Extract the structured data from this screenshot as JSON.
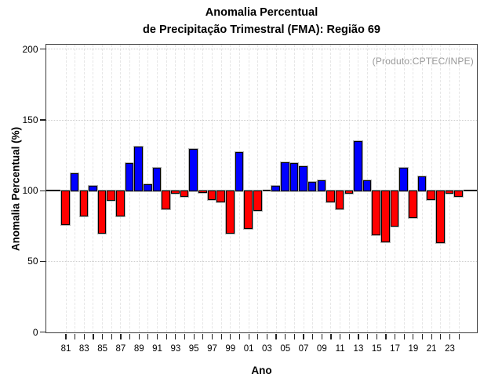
{
  "title": {
    "line1": "Anomalia Percentual",
    "line2": "de Precipitação Trimestral (FMA): Região 69"
  },
  "annotation": "(Produto:CPTEC/INPE)",
  "chart_data": {
    "type": "bar",
    "title": "Anomalia Percentual de Precipitação Trimestral (FMA): Região 69",
    "xlabel": "Ano",
    "ylabel": "Anomalia Percentual (%)",
    "annotation": "(Produto:CPTEC/INPE)",
    "baseline": 100,
    "ylim": [
      0,
      203
    ],
    "yticks": [
      0,
      50,
      100,
      150,
      200
    ],
    "x_label_step": 2,
    "grid": "dotted",
    "legend": "none",
    "bar_colors": {
      "above_baseline": "#0000ff",
      "below_baseline": "#ff0000"
    },
    "categories": [
      "81",
      "82",
      "83",
      "84",
      "85",
      "86",
      "87",
      "88",
      "89",
      "90",
      "91",
      "92",
      "93",
      "94",
      "95",
      "96",
      "97",
      "98",
      "99",
      "00",
      "01",
      "02",
      "03",
      "04",
      "05",
      "06",
      "07",
      "08",
      "09",
      "10",
      "11",
      "12",
      "13",
      "14",
      "15",
      "16",
      "17",
      "18",
      "19",
      "20",
      "21",
      "22",
      "23",
      "24"
    ],
    "values": [
      76,
      112,
      82,
      103,
      70,
      93,
      82,
      119,
      131,
      104,
      116,
      87,
      98,
      96,
      129,
      99,
      94,
      92,
      70,
      127,
      73,
      86,
      100,
      103,
      120,
      119,
      117,
      106,
      107,
      92,
      87,
      98,
      135,
      107,
      69,
      64,
      75,
      116,
      81,
      110,
      94,
      63,
      98,
      96
    ]
  }
}
